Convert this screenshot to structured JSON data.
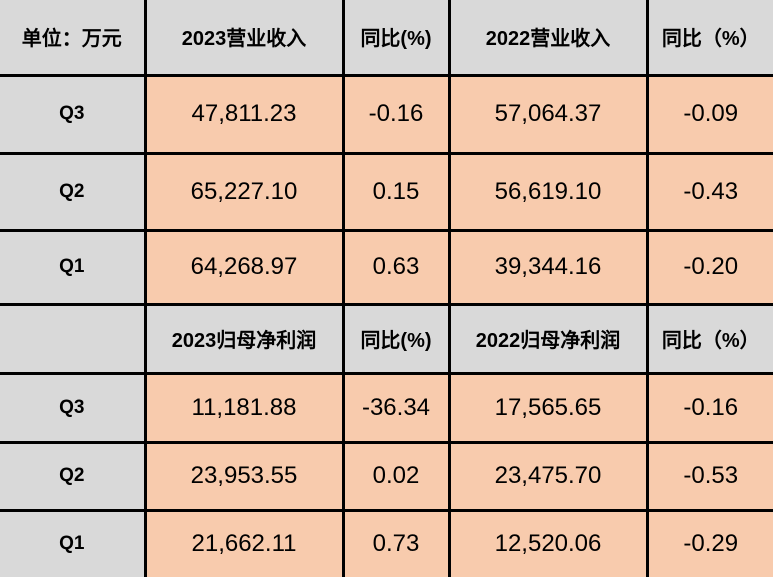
{
  "table": {
    "sections": [
      {
        "header": [
          "单位：万元",
          "2023营业收入",
          "同比(%)",
          "2022营业收入",
          "同比（%）"
        ],
        "rows": [
          [
            "Q3",
            "47,811.23",
            "-0.16",
            "57,064.37",
            "-0.09"
          ],
          [
            "Q2",
            "65,227.10",
            "0.15",
            "56,619.10",
            "-0.43"
          ],
          [
            "Q1",
            "64,268.97",
            "0.63",
            "39,344.16",
            "-0.20"
          ]
        ]
      },
      {
        "header": [
          "2023归母净利润",
          "同比(%)",
          "2022归母净利润",
          "同比（%）"
        ],
        "rows": [
          [
            "Q3",
            "11,181.88",
            "-36.34",
            "17,565.65",
            "-0.16"
          ],
          [
            "Q2",
            "23,953.55",
            "0.02",
            "23,475.70",
            "-0.53"
          ],
          [
            "Q1",
            "21,662.11",
            "0.73",
            "12,520.06",
            "-0.29"
          ]
        ]
      }
    ]
  }
}
